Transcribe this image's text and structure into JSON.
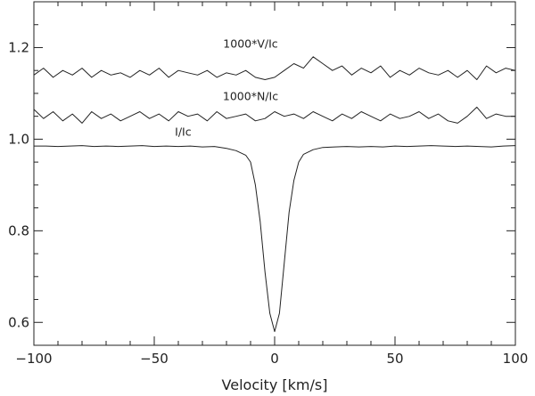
{
  "chart_data": {
    "type": "line",
    "title": "",
    "xlabel": "Velocity [km/s]",
    "ylabel": "",
    "xlim": [
      -100,
      100
    ],
    "ylim": [
      0.55,
      1.3
    ],
    "x_ticks": [
      -100,
      -50,
      0,
      50,
      100
    ],
    "x_tick_labels": [
      "−100",
      "−50",
      "0",
      "50",
      "100"
    ],
    "y_ticks": [
      0.6,
      0.8,
      1.0,
      1.2
    ],
    "y_tick_labels": [
      "0.6",
      "0.8",
      "1.0",
      "1.2"
    ],
    "grid": false,
    "legend": "none",
    "series": [
      {
        "name": "1000*V/Ic",
        "label_at": [
          -10,
          1.2
        ],
        "x": [
          -100,
          -96,
          -92,
          -88,
          -84,
          -80,
          -76,
          -72,
          -68,
          -64,
          -60,
          -56,
          -52,
          -48,
          -44,
          -40,
          -36,
          -32,
          -28,
          -24,
          -20,
          -16,
          -12,
          -8,
          -4,
          0,
          4,
          8,
          12,
          16,
          20,
          24,
          28,
          32,
          36,
          40,
          44,
          48,
          52,
          56,
          60,
          64,
          68,
          72,
          76,
          80,
          84,
          88,
          92,
          96,
          100
        ],
        "y": [
          1.14,
          1.155,
          1.135,
          1.15,
          1.14,
          1.155,
          1.135,
          1.15,
          1.14,
          1.145,
          1.135,
          1.15,
          1.14,
          1.155,
          1.135,
          1.15,
          1.145,
          1.14,
          1.15,
          1.135,
          1.145,
          1.14,
          1.15,
          1.135,
          1.13,
          1.135,
          1.15,
          1.165,
          1.155,
          1.18,
          1.165,
          1.15,
          1.16,
          1.14,
          1.155,
          1.145,
          1.16,
          1.135,
          1.15,
          1.14,
          1.155,
          1.145,
          1.14,
          1.15,
          1.135,
          1.15,
          1.13,
          1.16,
          1.145,
          1.155,
          1.15
        ]
      },
      {
        "name": "1000*N/Ic",
        "label_at": [
          -10,
          1.085
        ],
        "x": [
          -100,
          -96,
          -92,
          -88,
          -84,
          -80,
          -76,
          -72,
          -68,
          -64,
          -60,
          -56,
          -52,
          -48,
          -44,
          -40,
          -36,
          -32,
          -28,
          -24,
          -20,
          -16,
          -12,
          -8,
          -4,
          0,
          4,
          8,
          12,
          16,
          20,
          24,
          28,
          32,
          36,
          40,
          44,
          48,
          52,
          56,
          60,
          64,
          68,
          72,
          76,
          80,
          84,
          88,
          92,
          96,
          100
        ],
        "y": [
          1.065,
          1.045,
          1.06,
          1.04,
          1.055,
          1.035,
          1.06,
          1.045,
          1.055,
          1.04,
          1.05,
          1.06,
          1.045,
          1.055,
          1.04,
          1.06,
          1.05,
          1.055,
          1.04,
          1.06,
          1.045,
          1.05,
          1.055,
          1.04,
          1.045,
          1.06,
          1.05,
          1.055,
          1.045,
          1.06,
          1.05,
          1.04,
          1.055,
          1.045,
          1.06,
          1.05,
          1.04,
          1.055,
          1.045,
          1.05,
          1.06,
          1.045,
          1.055,
          1.04,
          1.035,
          1.05,
          1.07,
          1.045,
          1.055,
          1.05,
          1.05
        ]
      },
      {
        "name": "I/Ic",
        "label_at": [
          -38,
          1.008
        ],
        "x": [
          -100,
          -95,
          -90,
          -85,
          -80,
          -75,
          -70,
          -65,
          -60,
          -55,
          -50,
          -45,
          -40,
          -35,
          -30,
          -25,
          -20,
          -16,
          -12,
          -10,
          -8,
          -6,
          -4,
          -2,
          0,
          2,
          4,
          6,
          8,
          10,
          12,
          16,
          20,
          25,
          30,
          35,
          40,
          45,
          50,
          55,
          60,
          65,
          70,
          75,
          80,
          85,
          90,
          95,
          100
        ],
        "y": [
          0.985,
          0.985,
          0.984,
          0.985,
          0.986,
          0.984,
          0.985,
          0.984,
          0.985,
          0.986,
          0.984,
          0.985,
          0.984,
          0.985,
          0.983,
          0.984,
          0.98,
          0.975,
          0.965,
          0.95,
          0.9,
          0.82,
          0.71,
          0.62,
          0.58,
          0.62,
          0.73,
          0.84,
          0.91,
          0.95,
          0.967,
          0.977,
          0.982,
          0.983,
          0.984,
          0.983,
          0.984,
          0.983,
          0.985,
          0.984,
          0.985,
          0.986,
          0.985,
          0.984,
          0.985,
          0.984,
          0.983,
          0.985,
          0.986
        ]
      }
    ]
  }
}
